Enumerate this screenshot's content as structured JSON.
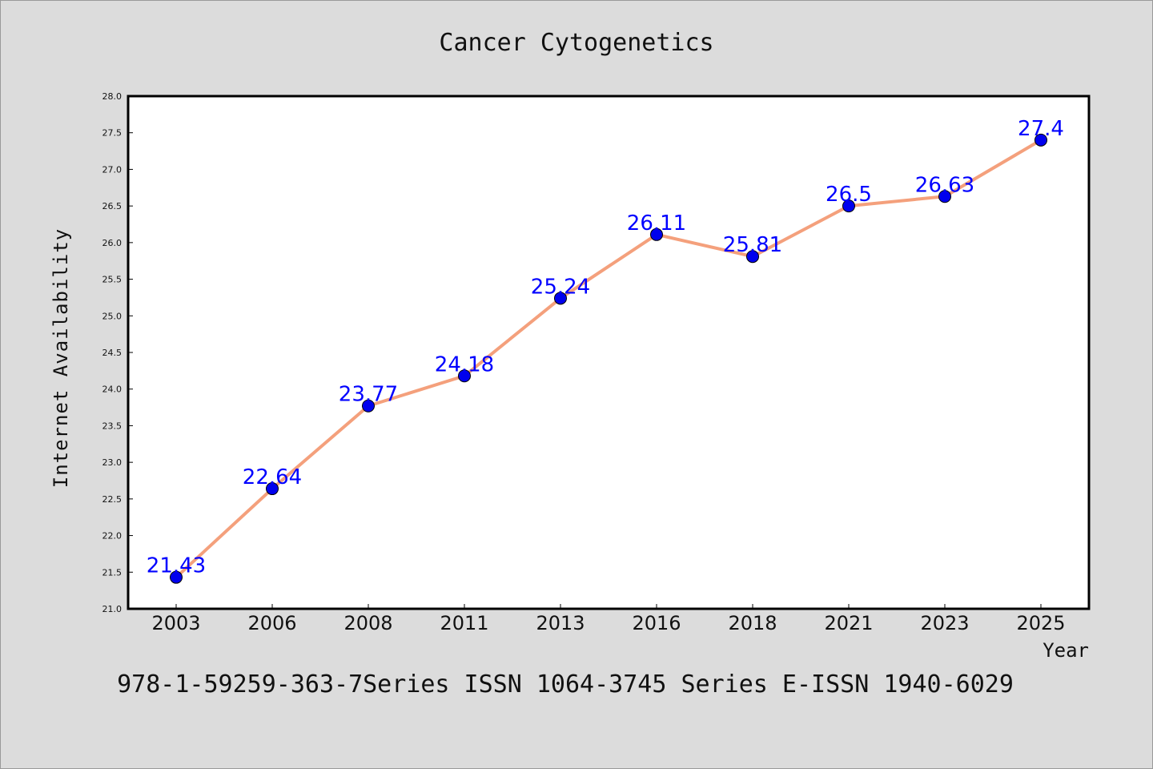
{
  "chart_data": {
    "type": "line",
    "title": "Cancer Cytogenetics",
    "xlabel": "Year",
    "ylabel": "Internet Availability",
    "categories": [
      "2003",
      "2006",
      "2008",
      "2011",
      "2013",
      "2016",
      "2018",
      "2021",
      "2023",
      "2025"
    ],
    "series": [
      {
        "values": [
          21.43,
          22.64,
          23.77,
          24.18,
          25.24,
          26.11,
          25.81,
          26.5,
          26.63,
          27.4
        ]
      }
    ],
    "data_labels": [
      "21.43",
      "22.64",
      "23.77",
      "24.18",
      "25.24",
      "26.11",
      "25.81",
      "26.5",
      "26.63",
      "27.4"
    ],
    "ylim": [
      21.0,
      28.0
    ],
    "yticks": [
      "21.0",
      "21.5",
      "22.0",
      "22.5",
      "23.0",
      "23.5",
      "24.0",
      "24.5",
      "25.0",
      "25.5",
      "26.0",
      "26.5",
      "27.0",
      "27.5",
      "28.0"
    ],
    "grid": false,
    "line_color": "#f4a07c",
    "marker_color": "#0000ee",
    "label_color": "#0000ff",
    "background_color": "#dcdcdc",
    "plot_background": "#ffffff"
  },
  "footer": "978-1-59259-363-7Series ISSN 1064-3745 Series E-ISSN 1940-6029"
}
